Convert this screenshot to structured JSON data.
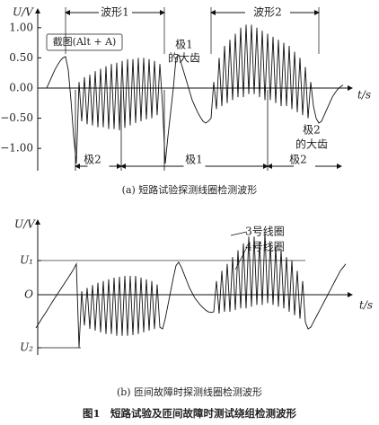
{
  "chart_data": [
    {
      "type": "line",
      "ylabel": "U/V",
      "xlabel": "t/s",
      "ylim": [
        -1.37,
        1.31
      ],
      "yticks": [
        {
          "value": 1,
          "label": "1.00"
        },
        {
          "value": 0.5,
          "label": "0.50"
        },
        {
          "value": 0,
          "label": "0.00"
        },
        {
          "value": -0.5,
          "label": "−0.50"
        },
        {
          "value": -1,
          "label": "−1.00"
        }
      ],
      "series": [
        {
          "color": "#111",
          "values": [
            0.0,
            0.1,
            0.2,
            0.3,
            0.38,
            0.45,
            0.5,
            0.52,
            0.3,
            -0.2,
            -0.8,
            -1.25,
            0.1,
            -0.55,
            0.18,
            -0.6,
            0.22,
            -0.62,
            0.28,
            -0.65,
            0.32,
            -0.65,
            0.36,
            -0.68,
            0.4,
            -0.68,
            0.42,
            -0.7,
            0.45,
            -0.66,
            0.48,
            -0.62,
            0.48,
            -0.58,
            0.5,
            -0.55,
            0.5,
            -0.52,
            0.48,
            -0.5,
            0.45,
            -0.45,
            0.4,
            -0.3,
            -1.25,
            -0.8,
            -0.4,
            0.0,
            0.5,
            0.55,
            0.4,
            0.25,
            0.1,
            -0.05,
            -0.2,
            -0.3,
            -0.4,
            -0.48,
            -0.55,
            -0.58,
            -0.55,
            -0.5,
            0.1,
            -0.35,
            0.5,
            -0.3,
            0.7,
            -0.25,
            0.8,
            -0.2,
            0.9,
            -0.15,
            1.0,
            -0.15,
            1.05,
            -0.1,
            1.05,
            -0.1,
            1.0,
            -0.15,
            0.95,
            -0.2,
            0.9,
            -0.2,
            0.85,
            -0.25,
            0.8,
            -0.3,
            0.75,
            -0.3,
            0.7,
            -0.35,
            0.6,
            -0.4,
            0.5,
            -0.45,
            0.35,
            -0.5,
            0.1,
            -0.3,
            -0.5,
            -0.58,
            -0.55,
            -0.45,
            -0.35,
            -0.25,
            -0.15,
            -0.08,
            -0.02,
            0.02,
            0.05
          ]
        }
      ],
      "annotations": [
        "波形1",
        "波形2",
        "极1",
        "的大齿",
        "极2",
        "的大齿",
        "极2",
        "极1",
        "极2",
        "截图(Alt + A)"
      ],
      "subtitle": "(a) 短路试验探测线圈检测波形"
    },
    {
      "type": "line",
      "ylabel": "U/V",
      "xlabel": "t/s",
      "ylim": [
        -1.76,
        2.18
      ],
      "yticks": [
        {
          "value": 1,
          "label": "U₁"
        },
        {
          "value": 0,
          "label": "O"
        },
        {
          "value": -1.55,
          "label": "U₂"
        }
      ],
      "series": [
        {
          "color": "#111",
          "values": [
            -0.97,
            -0.85,
            -0.72,
            -0.6,
            -0.48,
            -0.35,
            -0.22,
            -0.1,
            0.02,
            0.14,
            0.26,
            0.38,
            0.5,
            0.62,
            0.75,
            0.9,
            -1.55,
            0.1,
            -0.9,
            0.2,
            -1.0,
            0.28,
            -1.05,
            0.35,
            -1.1,
            0.4,
            -1.15,
            0.45,
            -1.15,
            0.5,
            -1.2,
            0.52,
            -1.2,
            0.55,
            -1.2,
            0.55,
            -1.18,
            0.55,
            -1.15,
            0.5,
            -1.1,
            0.45,
            -1.05,
            0.4,
            -1.0,
            0.3,
            -0.95,
            -1.0,
            -0.7,
            -0.3,
            0.1,
            0.5,
            0.85,
            0.95,
            0.8,
            0.6,
            0.4,
            0.2,
            0.05,
            -0.1,
            -0.2,
            -0.3,
            -0.38,
            -0.45,
            -0.5,
            -0.52,
            -0.5,
            0.4,
            -0.55,
            0.7,
            -0.5,
            0.9,
            -0.5,
            1.1,
            -0.45,
            1.3,
            -0.4,
            1.5,
            -0.4,
            1.7,
            -0.35,
            1.7,
            -0.3,
            1.55,
            -0.3,
            1.8,
            -0.25,
            1.5,
            -0.3,
            1.4,
            -0.35,
            1.3,
            -0.4,
            1.1,
            -0.5,
            1.0,
            -0.6,
            0.7,
            -0.7,
            0.4,
            -0.8,
            -1.0,
            -0.95,
            -0.8,
            -0.65,
            -0.5,
            -0.35,
            -0.2,
            -0.05,
            0.1,
            0.25,
            0.4,
            0.55,
            0.7,
            0.8,
            0.9
          ]
        }
      ],
      "annotations": [
        "3号线圈",
        "4号线圈"
      ],
      "subtitle": "(b) 匝间故障时探测线圈检测波形"
    }
  ],
  "figure_caption": "图1　短路试验及匝间故障时测试绕组检测波形"
}
